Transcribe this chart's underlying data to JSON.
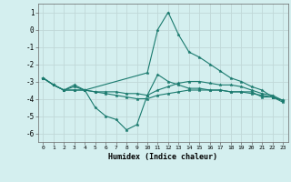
{
  "xlabel": "Humidex (Indice chaleur)",
  "background_color": "#d4efef",
  "grid_color": "#c0d8d8",
  "line_color": "#1a7a6e",
  "xlim": [
    -0.5,
    23.5
  ],
  "ylim": [
    -6.5,
    1.5
  ],
  "xticks": [
    0,
    1,
    2,
    3,
    4,
    5,
    6,
    7,
    8,
    9,
    10,
    11,
    12,
    13,
    14,
    15,
    16,
    17,
    18,
    19,
    20,
    21,
    22,
    23
  ],
  "yticks": [
    -6,
    -5,
    -4,
    -3,
    -2,
    -1,
    0,
    1
  ],
  "lines": [
    {
      "x": [
        0,
        1,
        2,
        3,
        4,
        5,
        6,
        7,
        8,
        9,
        10,
        11,
        12,
        13,
        14,
        15,
        16,
        17,
        18,
        19,
        20,
        21,
        22,
        23
      ],
      "y": [
        -2.8,
        -3.2,
        -3.5,
        -3.2,
        -3.5,
        -4.5,
        -5.0,
        -5.2,
        -5.8,
        -5.5,
        -3.8,
        -2.6,
        -3.0,
        -3.2,
        -3.4,
        -3.4,
        -3.5,
        -3.5,
        -3.6,
        -3.6,
        -3.7,
        -3.8,
        -3.9,
        -4.1
      ]
    },
    {
      "x": [
        0,
        1,
        2,
        3,
        4,
        5,
        6,
        7,
        8,
        9,
        10,
        11,
        12,
        13,
        14,
        15,
        16,
        17,
        18,
        19,
        20,
        21,
        22,
        23
      ],
      "y": [
        -2.8,
        -3.2,
        -3.5,
        -3.5,
        -3.5,
        -3.6,
        -3.6,
        -3.6,
        -3.7,
        -3.7,
        -3.8,
        -3.5,
        -3.3,
        -3.1,
        -3.0,
        -3.0,
        -3.1,
        -3.2,
        -3.2,
        -3.3,
        -3.5,
        -3.7,
        -3.8,
        -4.1
      ]
    },
    {
      "x": [
        0,
        1,
        2,
        3,
        4,
        10,
        11,
        12,
        13,
        14,
        15,
        16,
        17,
        18,
        19,
        20,
        21,
        22,
        23
      ],
      "y": [
        -2.8,
        -3.2,
        -3.5,
        -3.3,
        -3.5,
        -2.5,
        0.0,
        1.0,
        -0.3,
        -1.3,
        -1.6,
        -2.0,
        -2.4,
        -2.8,
        -3.0,
        -3.3,
        -3.5,
        -3.9,
        -4.1
      ]
    },
    {
      "x": [
        0,
        1,
        2,
        3,
        4,
        5,
        6,
        7,
        8,
        9,
        10,
        11,
        12,
        13,
        14,
        15,
        16,
        17,
        18,
        19,
        20,
        21,
        22,
        23
      ],
      "y": [
        -2.8,
        -3.2,
        -3.5,
        -3.5,
        -3.5,
        -3.6,
        -3.7,
        -3.8,
        -3.9,
        -4.0,
        -4.0,
        -3.8,
        -3.7,
        -3.6,
        -3.5,
        -3.5,
        -3.5,
        -3.5,
        -3.6,
        -3.6,
        -3.6,
        -3.9,
        -3.9,
        -4.2
      ]
    }
  ]
}
